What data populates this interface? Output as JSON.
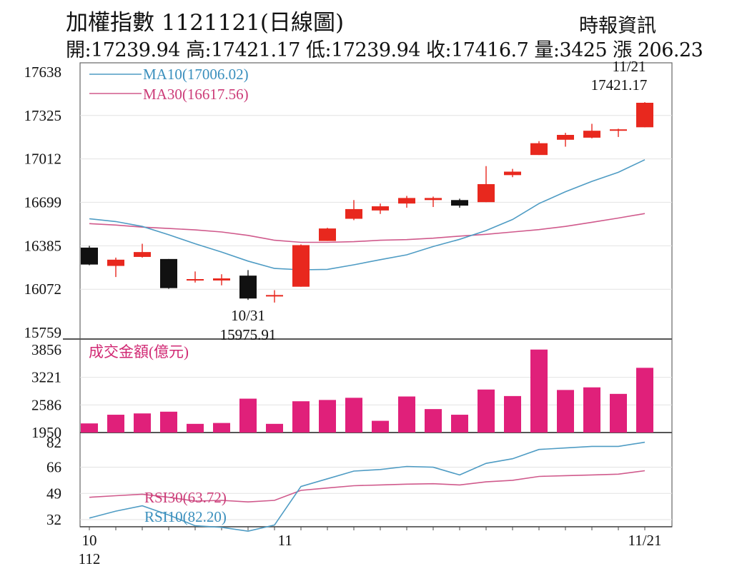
{
  "header": {
    "title": "加權指數 1121121(日線圖)",
    "source": "時報資訊",
    "stats": "開:17239.94 高:17421.17 低:17239.94 收:17416.7 量:3425 漲 206.23"
  },
  "chart_data": [
    {
      "type": "candlestick",
      "yticks": [
        17638,
        17325,
        17012,
        16699,
        16385,
        16072,
        15759
      ],
      "ylim": [
        15759,
        17638
      ],
      "candles": [
        {
          "open": 16372,
          "high": 16385,
          "low": 16245,
          "close": 16250
        },
        {
          "open": 16240,
          "high": 16300,
          "low": 16160,
          "close": 16285
        },
        {
          "open": 16305,
          "high": 16400,
          "low": 16300,
          "close": 16340
        },
        {
          "open": 16290,
          "high": 16290,
          "low": 16075,
          "close": 16080
        },
        {
          "open": 16135,
          "high": 16200,
          "low": 16120,
          "close": 16145
        },
        {
          "open": 16135,
          "high": 16180,
          "low": 16100,
          "close": 16150
        },
        {
          "open": 16170,
          "high": 16210,
          "low": 15995,
          "close": 16005
        },
        {
          "open": 16020,
          "high": 16065,
          "low": 15975.91,
          "close": 16030
        },
        {
          "open": 16090,
          "high": 16395,
          "low": 16090,
          "close": 16390
        },
        {
          "open": 16420,
          "high": 16515,
          "low": 16420,
          "close": 16510
        },
        {
          "open": 16580,
          "high": 16715,
          "low": 16570,
          "close": 16650
        },
        {
          "open": 16640,
          "high": 16690,
          "low": 16615,
          "close": 16670
        },
        {
          "open": 16690,
          "high": 16745,
          "low": 16660,
          "close": 16730
        },
        {
          "open": 16715,
          "high": 16740,
          "low": 16665,
          "close": 16730
        },
        {
          "open": 16715,
          "high": 16725,
          "low": 16660,
          "close": 16675
        },
        {
          "open": 16700,
          "high": 16960,
          "low": 16700,
          "close": 16830
        },
        {
          "open": 16895,
          "high": 16940,
          "low": 16880,
          "close": 16920
        },
        {
          "open": 17040,
          "high": 17140,
          "low": 17040,
          "close": 17125
        },
        {
          "open": 17150,
          "high": 17200,
          "low": 17100,
          "close": 17185
        },
        {
          "open": 17165,
          "high": 17265,
          "low": 17160,
          "close": 17215
        },
        {
          "open": 17215,
          "high": 17230,
          "low": 17170,
          "close": 17225
        },
        {
          "open": 17239.94,
          "high": 17421.17,
          "low": 17239.94,
          "close": 17416.7
        }
      ],
      "ma10": {
        "label": "MA10(17006.02)",
        "color": "#4f9cc4",
        "values": [
          16580,
          16560,
          16525,
          16465,
          16400,
          16340,
          16275,
          16222,
          16212,
          16215,
          16248,
          16285,
          16320,
          16380,
          16432,
          16495,
          16575,
          16690,
          16775,
          16850,
          16915,
          17006.02
        ]
      },
      "ma30": {
        "label": "MA30(16617.56)",
        "color": "#d05a8c",
        "values": [
          16545,
          16535,
          16520,
          16510,
          16500,
          16485,
          16460,
          16425,
          16410,
          16410,
          16415,
          16425,
          16430,
          16440,
          16455,
          16468,
          16485,
          16502,
          16525,
          16555,
          16585,
          16617.56
        ]
      },
      "annotations": [
        {
          "label": "11/21",
          "value": "17421.17"
        },
        {
          "label": "10/31",
          "value": "15975.91"
        }
      ]
    },
    {
      "type": "bar",
      "title": "成交金額(億元)",
      "color": "#e0207a",
      "yticks": [
        3856,
        3221,
        2586,
        1950
      ],
      "ylim": [
        1950,
        3856
      ],
      "values": [
        2160,
        2360,
        2390,
        2430,
        2150,
        2170,
        2730,
        2150,
        2670,
        2700,
        2750,
        2220,
        2780,
        2490,
        2360,
        2940,
        2790,
        3860,
        2930,
        2990,
        2840,
        3440
      ]
    },
    {
      "type": "line",
      "yticks": [
        82,
        66,
        49,
        32
      ],
      "ylim": [
        32,
        82
      ],
      "rsi30": {
        "label": "RSI30(63.72)",
        "color": "#d05a8c",
        "values": [
          46.5,
          47.5,
          48.5,
          46.5,
          44,
          44.5,
          43.5,
          44.5,
          51,
          52.5,
          54,
          54.5,
          55,
          55.3,
          54.5,
          56.5,
          57.5,
          60,
          60.5,
          61,
          61.5,
          63.72
        ]
      },
      "rsi10": {
        "label": "RSI10(82.20)",
        "color": "#4f9cc4",
        "values": [
          33,
          37.5,
          41,
          35,
          28,
          27,
          24.5,
          28.5,
          53.5,
          58.5,
          63.5,
          64.5,
          66.5,
          66,
          61,
          68.5,
          71.5,
          77.5,
          78.5,
          79.5,
          79.5,
          82.2
        ]
      }
    }
  ],
  "x_axis": {
    "labels": [
      "10",
      "11",
      "11/21"
    ],
    "sublabel": "112"
  }
}
